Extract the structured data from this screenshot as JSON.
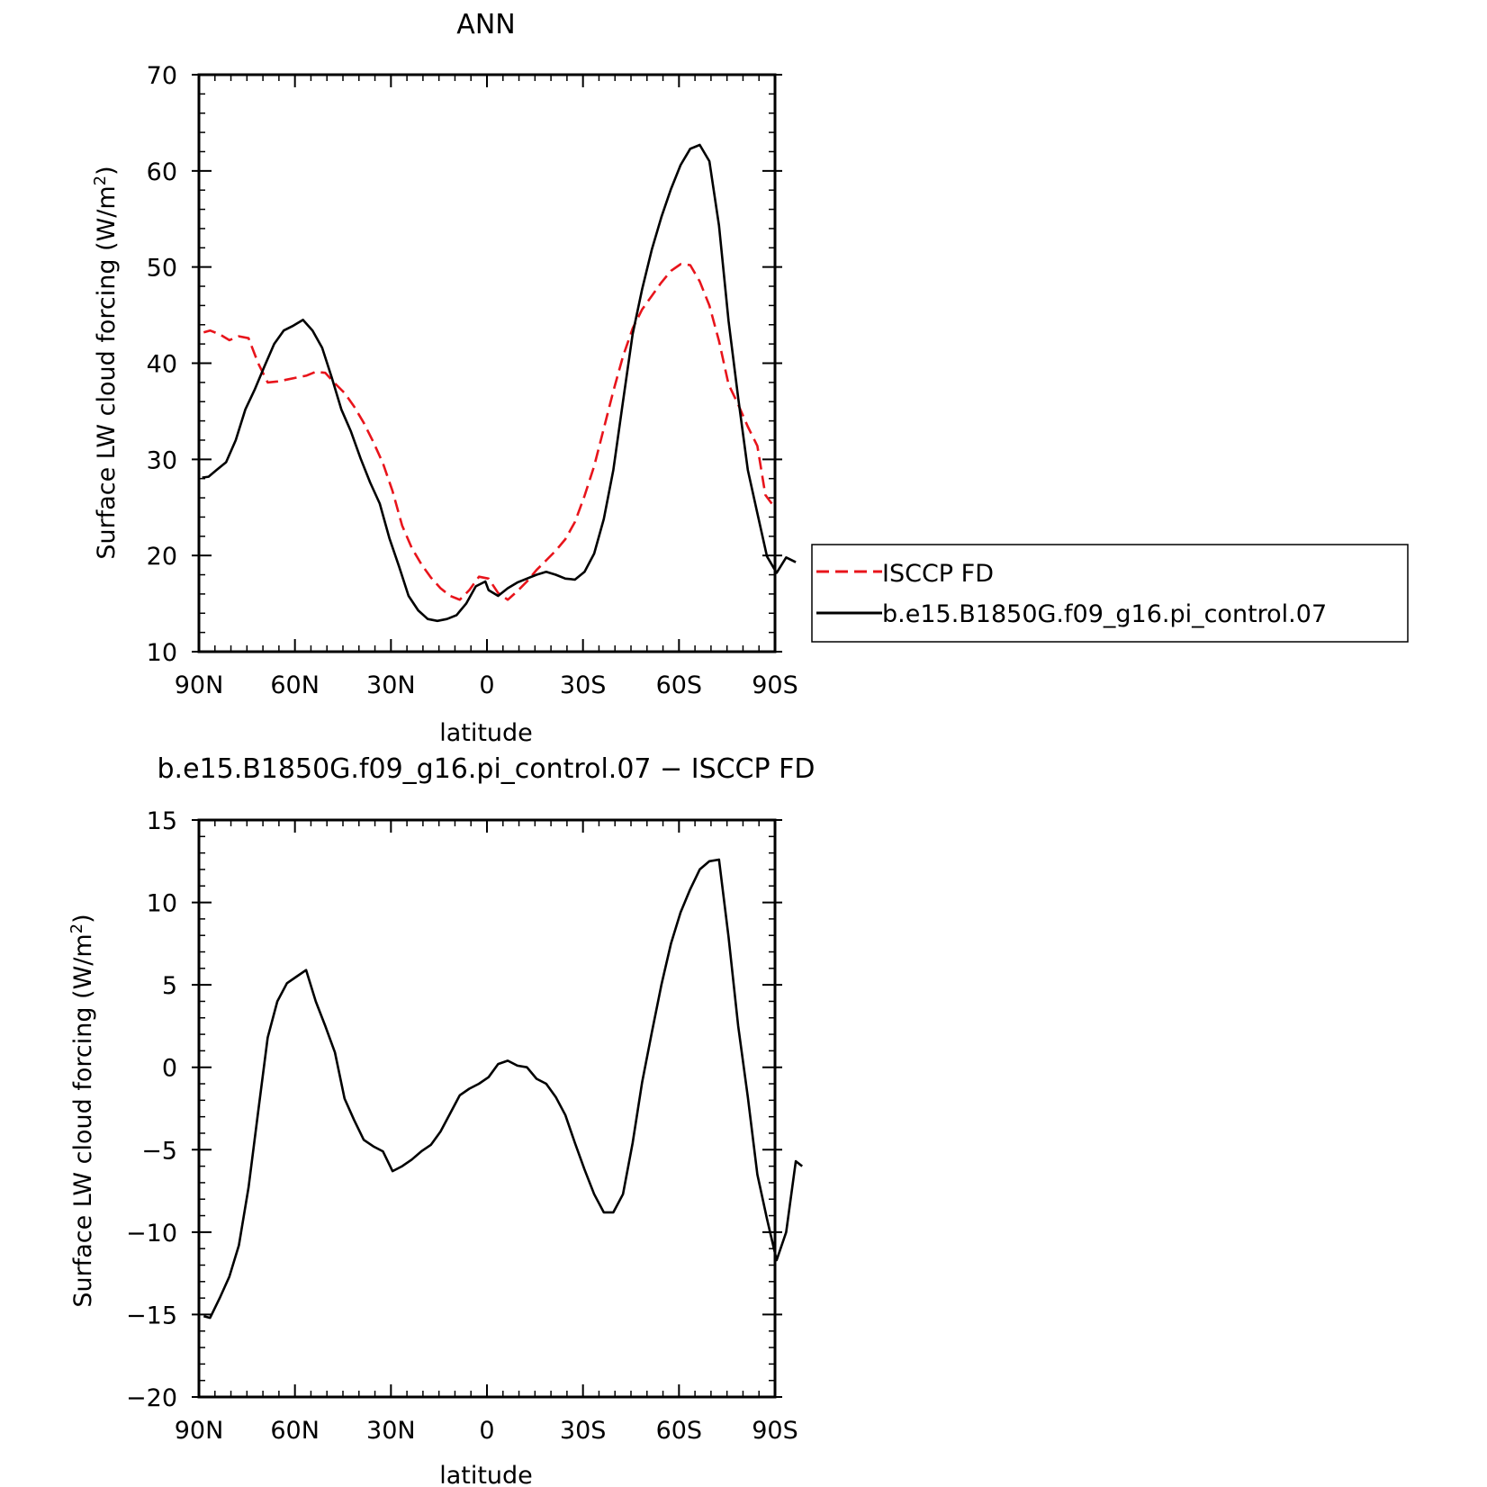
{
  "chart_data": [
    {
      "type": "line",
      "title": "ANN",
      "xlabel": "latitude",
      "ylabel": "Surface LW cloud forcing (W/m²)",
      "xlim": [
        90,
        -90
      ],
      "ylim": [
        10,
        70
      ],
      "xticks": [
        90,
        60,
        30,
        0,
        -30,
        -60,
        -90
      ],
      "xtick_labels": [
        "90N",
        "60N",
        "30N",
        "0",
        "30S",
        "60S",
        "90S"
      ],
      "yticks": [
        10,
        20,
        30,
        40,
        50,
        60,
        70
      ],
      "ytick_labels": [
        "10",
        "20",
        "30",
        "40",
        "50",
        "60",
        "70"
      ],
      "legend_position": "right",
      "series": [
        {
          "name": "ISCCP FD",
          "color": "#e8141b",
          "dash": "dashed",
          "points": [
            [
              88.5,
              43.2
            ],
            [
              86.5,
              43.4
            ],
            [
              83.5,
              43.0
            ],
            [
              80.5,
              42.4
            ],
            [
              77.5,
              42.8
            ],
            [
              74.5,
              42.6
            ],
            [
              71.5,
              40.0
            ],
            [
              68.5,
              38.0
            ],
            [
              65.5,
              38.1
            ],
            [
              62.5,
              38.3
            ],
            [
              59.5,
              38.5
            ],
            [
              56.5,
              38.7
            ],
            [
              53.5,
              39.1
            ],
            [
              50.5,
              39.0
            ],
            [
              47.5,
              37.9
            ],
            [
              44.5,
              36.9
            ],
            [
              41.5,
              35.5
            ],
            [
              38.5,
              33.8
            ],
            [
              35.5,
              31.8
            ],
            [
              32.5,
              29.6
            ],
            [
              29.5,
              26.7
            ],
            [
              26.5,
              23.1
            ],
            [
              23.5,
              20.8
            ],
            [
              20.5,
              19.1
            ],
            [
              17.5,
              17.7
            ],
            [
              14.5,
              16.6
            ],
            [
              11.5,
              15.8
            ],
            [
              8.5,
              15.4
            ],
            [
              5.5,
              16.4
            ],
            [
              2.5,
              17.8
            ],
            [
              -0.5,
              17.6
            ],
            [
              -3.5,
              16.1
            ],
            [
              -6.5,
              15.4
            ],
            [
              -9.5,
              16.3
            ],
            [
              -12.5,
              17.3
            ],
            [
              -15.5,
              18.5
            ],
            [
              -18.5,
              19.5
            ],
            [
              -21.5,
              20.5
            ],
            [
              -24.5,
              21.7
            ],
            [
              -27.5,
              23.5
            ],
            [
              -30.5,
              26.2
            ],
            [
              -33.5,
              29.3
            ],
            [
              -36.5,
              33.2
            ],
            [
              -39.5,
              37.1
            ],
            [
              -42.5,
              40.7
            ],
            [
              -45.5,
              43.6
            ],
            [
              -48.5,
              45.6
            ],
            [
              -51.5,
              47.0
            ],
            [
              -54.5,
              48.4
            ],
            [
              -57.5,
              49.6
            ],
            [
              -60.5,
              50.3
            ],
            [
              -63.5,
              50.2
            ],
            [
              -66.5,
              48.5
            ],
            [
              -69.5,
              46.0
            ],
            [
              -72.5,
              42.3
            ],
            [
              -75.5,
              37.8
            ],
            [
              -78.5,
              35.7
            ],
            [
              -81.5,
              33.4
            ],
            [
              -84.5,
              31.4
            ],
            [
              -87.0,
              26.3
            ],
            [
              -89.0,
              25.4
            ]
          ]
        },
        {
          "name": "b.e15.B1850G.f09_g16.pi_control.07",
          "color": "#000000",
          "dash": "solid",
          "points": [
            [
              89.0,
              28.1
            ],
            [
              87.0,
              28.2
            ],
            [
              84.5,
              28.9
            ],
            [
              81.5,
              29.7
            ],
            [
              78.5,
              32.0
            ],
            [
              75.5,
              35.2
            ],
            [
              72.5,
              37.3
            ],
            [
              69.5,
              39.7
            ],
            [
              66.5,
              42.0
            ],
            [
              63.5,
              43.4
            ],
            [
              60.5,
              43.9
            ],
            [
              57.5,
              44.5
            ],
            [
              54.5,
              43.4
            ],
            [
              51.5,
              41.6
            ],
            [
              48.5,
              38.5
            ],
            [
              45.5,
              35.2
            ],
            [
              42.5,
              32.9
            ],
            [
              39.5,
              30.1
            ],
            [
              36.5,
              27.6
            ],
            [
              33.5,
              25.4
            ],
            [
              30.5,
              21.8
            ],
            [
              27.5,
              18.9
            ],
            [
              24.5,
              15.8
            ],
            [
              21.5,
              14.3
            ],
            [
              18.5,
              13.4
            ],
            [
              15.5,
              13.2
            ],
            [
              12.5,
              13.4
            ],
            [
              9.5,
              13.8
            ],
            [
              6.5,
              15.0
            ],
            [
              3.5,
              16.8
            ],
            [
              0.5,
              17.3
            ],
            [
              -0.5,
              16.4
            ],
            [
              -3.5,
              15.8
            ],
            [
              -6.5,
              16.6
            ],
            [
              -9.5,
              17.2
            ],
            [
              -12.5,
              17.6
            ],
            [
              -15.5,
              18.0
            ],
            [
              -18.5,
              18.3
            ],
            [
              -21.5,
              18.0
            ],
            [
              -24.5,
              17.6
            ],
            [
              -27.5,
              17.5
            ],
            [
              -30.5,
              18.3
            ],
            [
              -33.5,
              20.2
            ],
            [
              -36.5,
              23.8
            ],
            [
              -39.5,
              28.9
            ],
            [
              -42.5,
              36.0
            ],
            [
              -45.5,
              43.0
            ],
            [
              -48.5,
              47.7
            ],
            [
              -51.5,
              51.8
            ],
            [
              -54.5,
              55.2
            ],
            [
              -57.5,
              58.1
            ],
            [
              -60.5,
              60.6
            ],
            [
              -63.5,
              62.3
            ],
            [
              -66.5,
              62.7
            ],
            [
              -69.5,
              61.0
            ],
            [
              -72.5,
              54.3
            ],
            [
              -75.5,
              44.4
            ],
            [
              -78.5,
              36.4
            ],
            [
              -81.5,
              28.9
            ],
            [
              -84.5,
              24.4
            ],
            [
              -87.5,
              19.9
            ],
            [
              -90.5,
              18.2
            ],
            [
              -93.5,
              19.8
            ],
            [
              -96.5,
              19.3
            ]
          ]
        }
      ]
    },
    {
      "type": "line",
      "title": "b.e15.B1850G.f09_g16.pi_control.07 − ISCCP FD",
      "xlabel": "latitude",
      "ylabel": "Surface LW cloud forcing (W/m²)",
      "xlim": [
        90,
        -90
      ],
      "ylim": [
        -20,
        15
      ],
      "xticks": [
        90,
        60,
        30,
        0,
        -30,
        -60,
        -90
      ],
      "xtick_labels": [
        "90N",
        "60N",
        "30N",
        "0",
        "30S",
        "60S",
        "90S"
      ],
      "yticks": [
        -20,
        -15,
        -10,
        -5,
        0,
        5,
        10,
        15
      ],
      "ytick_labels": [
        "−20",
        "−15",
        "−10",
        "−5",
        "0",
        "5",
        "10",
        "15"
      ],
      "series": [
        {
          "color": "#000000",
          "dash": "solid",
          "points": [
            [
              88.5,
              -15.1
            ],
            [
              86.5,
              -15.2
            ],
            [
              83.5,
              -14.0
            ],
            [
              80.5,
              -12.7
            ],
            [
              77.5,
              -10.8
            ],
            [
              74.5,
              -7.3
            ],
            [
              71.5,
              -2.7
            ],
            [
              68.5,
              1.8
            ],
            [
              65.5,
              4.0
            ],
            [
              62.5,
              5.1
            ],
            [
              59.5,
              5.5
            ],
            [
              56.5,
              5.9
            ],
            [
              53.5,
              4.0
            ],
            [
              50.5,
              2.5
            ],
            [
              47.5,
              0.9
            ],
            [
              44.5,
              -1.9
            ],
            [
              41.5,
              -3.2
            ],
            [
              38.5,
              -4.4
            ],
            [
              35.5,
              -4.8
            ],
            [
              32.5,
              -5.1
            ],
            [
              29.5,
              -6.3
            ],
            [
              26.5,
              -6.0
            ],
            [
              23.5,
              -5.6
            ],
            [
              20.5,
              -5.1
            ],
            [
              17.5,
              -4.7
            ],
            [
              14.5,
              -3.9
            ],
            [
              11.5,
              -2.8
            ],
            [
              8.5,
              -1.7
            ],
            [
              5.5,
              -1.3
            ],
            [
              2.5,
              -1.0
            ],
            [
              -0.5,
              -0.6
            ],
            [
              -3.5,
              0.2
            ],
            [
              -6.5,
              0.4
            ],
            [
              -9.5,
              0.1
            ],
            [
              -12.5,
              0.0
            ],
            [
              -15.5,
              -0.7
            ],
            [
              -18.5,
              -1.0
            ],
            [
              -21.5,
              -1.8
            ],
            [
              -24.5,
              -2.9
            ],
            [
              -27.5,
              -4.6
            ],
            [
              -30.5,
              -6.2
            ],
            [
              -33.5,
              -7.7
            ],
            [
              -36.5,
              -8.8
            ],
            [
              -39.5,
              -8.8
            ],
            [
              -42.5,
              -7.7
            ],
            [
              -45.5,
              -4.6
            ],
            [
              -48.5,
              -0.9
            ],
            [
              -51.5,
              2.1
            ],
            [
              -54.5,
              5.0
            ],
            [
              -57.5,
              7.5
            ],
            [
              -60.5,
              9.4
            ],
            [
              -63.5,
              10.8
            ],
            [
              -66.5,
              12.0
            ],
            [
              -69.5,
              12.5
            ],
            [
              -72.5,
              12.6
            ],
            [
              -75.5,
              7.9
            ],
            [
              -78.5,
              2.5
            ],
            [
              -81.5,
              -1.8
            ],
            [
              -84.5,
              -6.5
            ],
            [
              -87.5,
              -9.2
            ],
            [
              -90.5,
              -11.7
            ],
            [
              -93.5,
              -10.0
            ],
            [
              -96.5,
              -5.7
            ],
            [
              -98.5,
              -6.0
            ]
          ]
        }
      ]
    }
  ]
}
